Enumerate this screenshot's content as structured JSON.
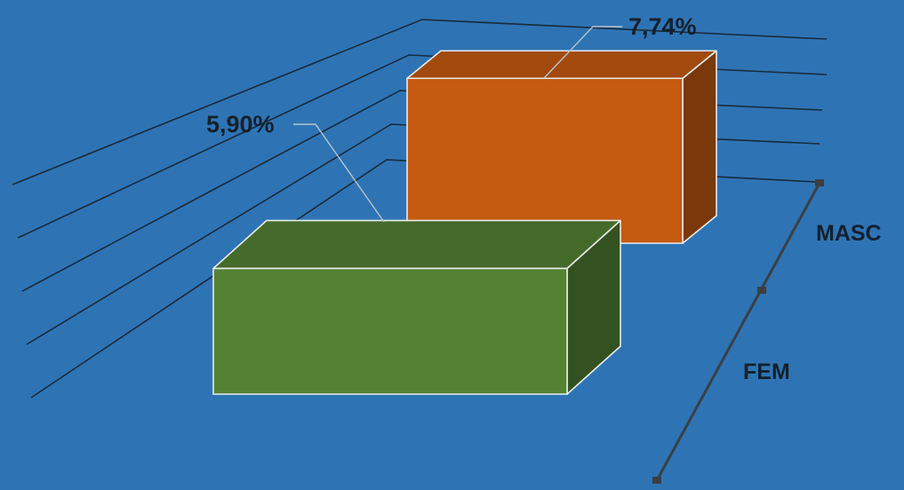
{
  "chart_data": {
    "type": "bar",
    "style": "3d-column",
    "categories": [
      "FEM",
      "MASC"
    ],
    "values": [
      5.9,
      7.74
    ],
    "data_labels": [
      "5,90%",
      "7,74%"
    ],
    "unit": "%",
    "title": "",
    "xlabel": "",
    "ylabel": "",
    "grid": true,
    "legend": "none",
    "colors": {
      "background": "#2e74b5",
      "FEM": "#548235",
      "MASC": "#c55a11",
      "gridlines": "#1a2a3a",
      "text": "#14202c"
    }
  }
}
